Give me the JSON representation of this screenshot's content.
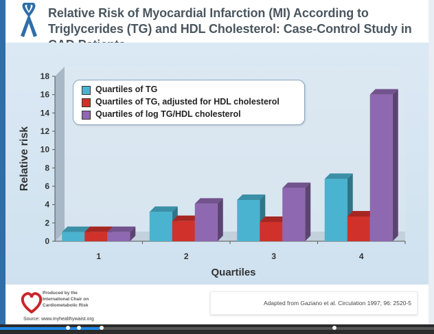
{
  "title": "Relative Risk of Myocardial Infarction (MI) According to Triglycerides (TG) and HDL Cholesterol: Case-Control Study in CAD Patients",
  "colors": {
    "series_tg": "#4ab3cf",
    "series_tg_adj": "#d0312a",
    "series_log": "#8e68b0",
    "ribbon": "#2f6ea8",
    "logo_heart": "#c8262c"
  },
  "chart_data": {
    "type": "bar",
    "categories": [
      "1",
      "2",
      "3",
      "4"
    ],
    "series": [
      {
        "name": "Quartiles of TG",
        "values": [
          1.0,
          3.2,
          4.5,
          6.8
        ]
      },
      {
        "name": "Quartiles of TG, adjusted for HDL cholesterol",
        "values": [
          1.0,
          2.2,
          2.1,
          2.7
        ]
      },
      {
        "name": "Quartiles of log TG/HDL cholesterol",
        "values": [
          1.0,
          4.1,
          5.8,
          16.0
        ]
      }
    ],
    "ylim": [
      0,
      18
    ],
    "yticks": [
      "0",
      "2",
      "4",
      "6",
      "8",
      "10",
      "12",
      "14",
      "16",
      "18"
    ],
    "xlabel": "Quartiles",
    "ylabel": "Relative risk",
    "legend_position": "top-left"
  },
  "footer": {
    "producer_line1": "Produced by the",
    "producer_line2": "International Chair on",
    "producer_line3": "Cardiometabolic Risk",
    "source": "Source: www.myhealthywaist.org",
    "citation": "Adapted from Gaziano et al. Circulation 1997; 96: 2520-5"
  },
  "player": {
    "progress_percent": 23
  }
}
